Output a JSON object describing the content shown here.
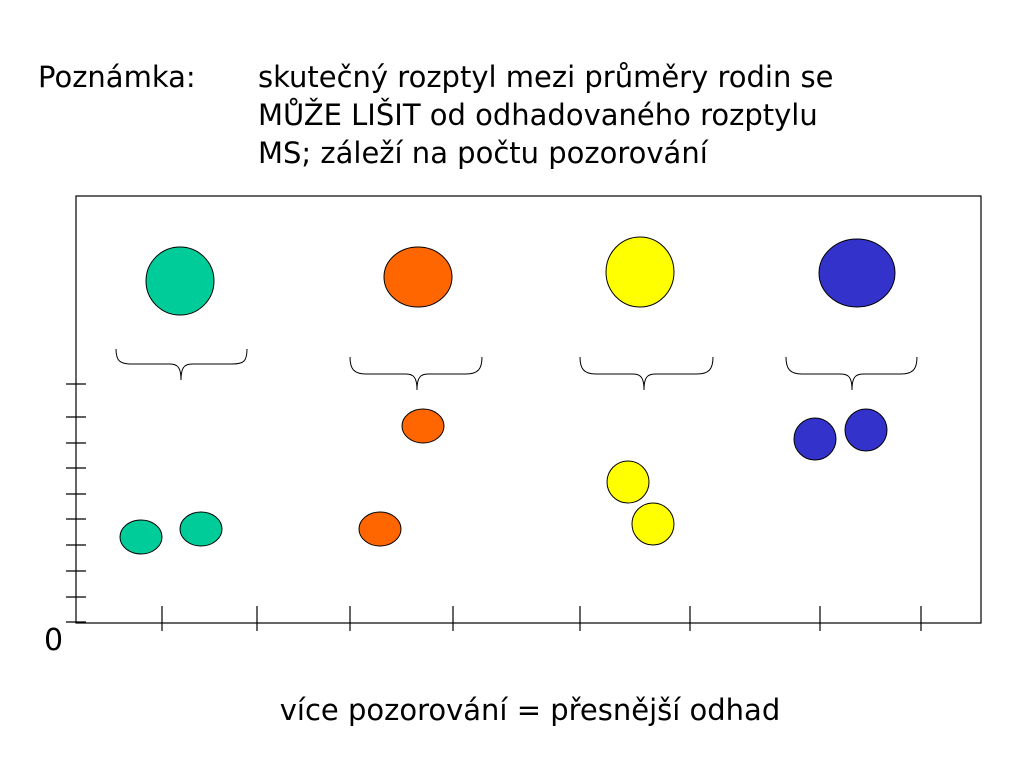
{
  "note": {
    "label": "Poznámka:",
    "lines": [
      "skutečný rozptyl mezi průměry rodin se",
      "MŮŽE LIŠIT od odhadovaného rozptylu",
      "MS; záleží na počtu pozorování"
    ]
  },
  "axis": {
    "zero_label": "0"
  },
  "caption": "více pozorování = přesnější odhad",
  "groups": [
    {
      "color": "#00cc99"
    },
    {
      "color": "#ff6600"
    },
    {
      "color": "#ffff00"
    },
    {
      "color": "#3333cc"
    }
  ]
}
